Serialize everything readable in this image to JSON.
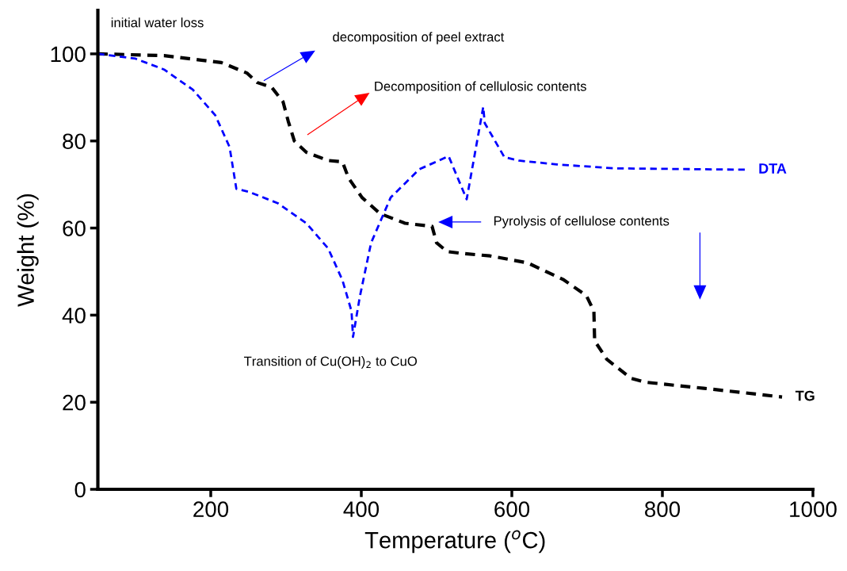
{
  "chart_data": {
    "type": "line",
    "xlabel": "Temperature ($^{o}$C)",
    "ylabel": "Weight (%)",
    "xlim": [
      50,
      1000
    ],
    "ylim": [
      0,
      110
    ],
    "xticks": [
      200,
      400,
      600,
      800,
      1000
    ],
    "yticks": [
      0,
      20,
      40,
      60,
      80,
      100
    ],
    "grid": false,
    "legend": false,
    "marker": "none",
    "line_style": "dashed",
    "series": [
      {
        "name": "TG",
        "color": "#000000",
        "x": [
          50,
          138,
          214,
          248,
          262,
          281,
          296,
          303,
          311,
          327,
          356,
          375,
          383,
          401,
          425,
          458,
          494,
          500,
          514,
          533,
          571,
          621,
          668,
          699,
          709,
          710,
          726,
          758,
          777,
          855,
          959
        ],
        "values": [
          100,
          99.6,
          98,
          95.6,
          93.4,
          92.3,
          89,
          84.5,
          80,
          77.4,
          75.5,
          75.2,
          71.5,
          67,
          63.3,
          61.1,
          60.4,
          56.6,
          54.6,
          54.2,
          53.6,
          52,
          48.2,
          44.5,
          40.9,
          34.1,
          29.9,
          25.5,
          24.6,
          23.2,
          21.2
        ]
      },
      {
        "name": "DTA",
        "color": "#0000ff",
        "x": [
          50,
          100,
          138,
          176,
          206,
          225,
          234,
          251,
          289,
          327,
          356,
          375,
          387,
          389,
          398,
          413,
          439,
          477,
          516,
          540,
          562,
          564,
          590,
          609,
          660,
          738,
          910
        ],
        "values": [
          100,
          98.9,
          96.4,
          91.8,
          85.9,
          78.6,
          69,
          68.3,
          65.7,
          61.1,
          55.3,
          48,
          40.9,
          35,
          44.2,
          56.6,
          67,
          73.5,
          76.5,
          66.6,
          87.8,
          84.1,
          76.3,
          75.5,
          74.6,
          73.7,
          73.4
        ]
      }
    ],
    "annotations": [
      "initial water loss",
      "decomposition of peel extract",
      "Decomposition of cellulosic contents",
      "Pyrolysis of cellulose contents",
      "Transition of Cu(OH)$_{2}$ to CuO"
    ]
  }
}
